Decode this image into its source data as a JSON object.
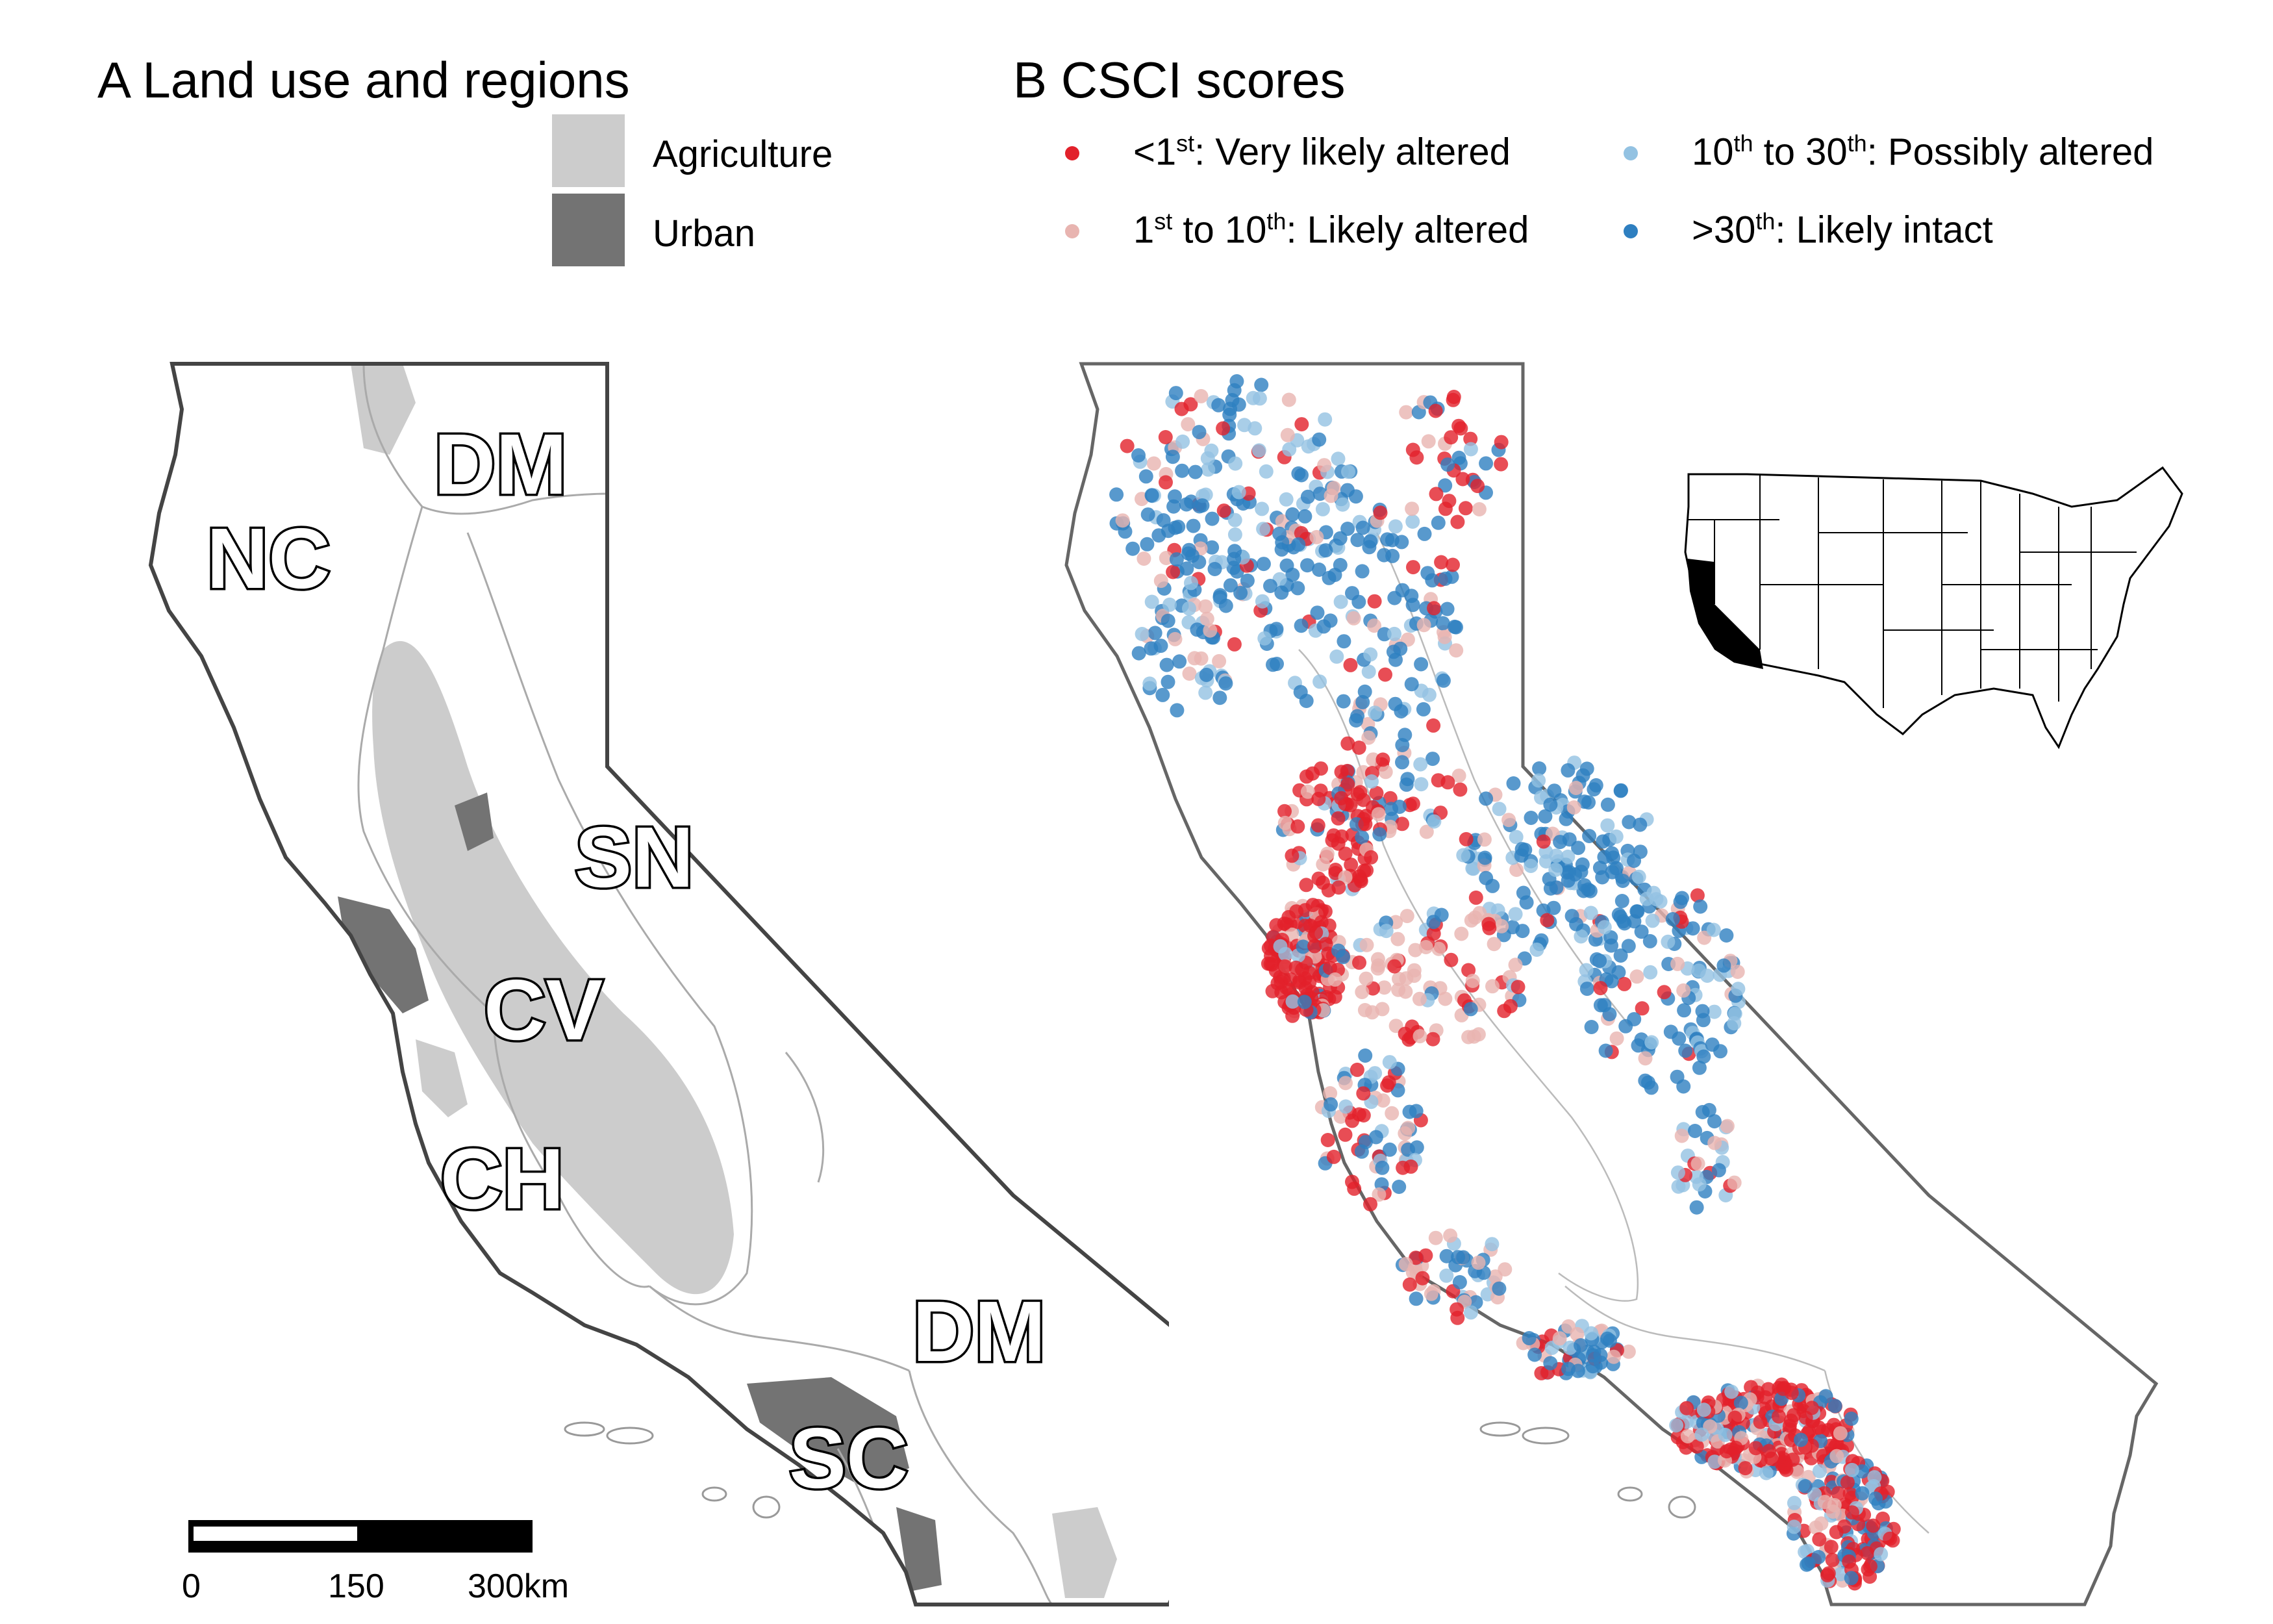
{
  "panel_a": {
    "title": "A Land use and regions",
    "legend": [
      {
        "label": "Agriculture",
        "color": "#cccccc"
      },
      {
        "label": "Urban",
        "color": "#737373"
      }
    ],
    "regions": [
      "DM",
      "NC",
      "SN",
      "CV",
      "CH",
      "DM",
      "SC"
    ],
    "scale_bar": {
      "ticks": [
        "0",
        "150",
        "300km"
      ]
    }
  },
  "panel_b": {
    "title": "B CSCI scores",
    "legend": [
      {
        "pre": "<1",
        "sup": "st",
        "post": ": Very likely altered",
        "color": "#e2212b"
      },
      {
        "pre": "1",
        "sup": "st",
        "mid": " to 10",
        "sup2": "th",
        "post": ": Likely altered",
        "color": "#e8b4b0"
      },
      {
        "pre": "10",
        "sup": "th",
        "mid": " to 30",
        "sup2": "th",
        "post": ": Possibly altered",
        "color": "#93c2e2"
      },
      {
        "pre": ">30",
        "sup": "th",
        "post": ": Likely intact",
        "color": "#2e7fc0"
      }
    ],
    "inset": "USA map with California highlighted"
  },
  "colors": {
    "outline": "#555555",
    "region_lines": "#aaaaaa",
    "agriculture": "#cccccc",
    "urban": "#737373"
  }
}
